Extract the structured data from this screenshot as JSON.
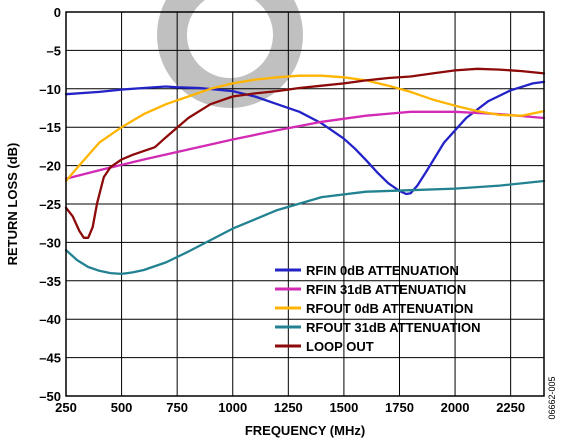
{
  "chart_data": {
    "type": "line",
    "title": "",
    "xlabel": "FREQUENCY (MHz)",
    "ylabel": "RETURN LOSS (dB)",
    "xlim": [
      250,
      2400
    ],
    "ylim": [
      -50,
      0
    ],
    "x_ticks": [
      250,
      500,
      750,
      1000,
      1250,
      1500,
      1750,
      2000,
      2250
    ],
    "y_ticks": [
      0,
      -5,
      -10,
      -15,
      -20,
      -25,
      -30,
      -35,
      -40,
      -45,
      -50
    ],
    "y_tick_labels": [
      "0",
      "–5",
      "–10",
      "–15",
      "–20",
      "–25",
      "–30",
      "–35",
      "–40",
      "–45",
      "–50"
    ],
    "grid": true,
    "legend_position": "bottom-right",
    "figure_id": "06662-005",
    "series": [
      {
        "name": "RFIN 0dB ATTENUATION",
        "color": "#2323c8",
        "x": [
          250,
          400,
          500,
          600,
          700,
          750,
          850,
          1000,
          1100,
          1200,
          1300,
          1400,
          1500,
          1550,
          1600,
          1650,
          1700,
          1750,
          1780,
          1800,
          1830,
          1870,
          1950,
          2050,
          2150,
          2250,
          2350,
          2400
        ],
        "y": [
          -10.7,
          -10.4,
          -10.1,
          -9.9,
          -9.7,
          -9.8,
          -9.9,
          -10.3,
          -11.0,
          -12.0,
          -13.0,
          -14.5,
          -16.5,
          -17.8,
          -19.3,
          -20.9,
          -22.3,
          -23.3,
          -23.7,
          -23.6,
          -22.6,
          -20.8,
          -17.0,
          -13.8,
          -11.6,
          -10.2,
          -9.3,
          -9.1
        ]
      },
      {
        "name": "RFIN 31dB ATTENUATION",
        "color": "#d22ab4",
        "x": [
          250,
          400,
          600,
          800,
          1000,
          1200,
          1400,
          1600,
          1800,
          2000,
          2200,
          2400
        ],
        "y": [
          -21.7,
          -20.6,
          -19.2,
          -17.9,
          -16.6,
          -15.4,
          -14.3,
          -13.5,
          -13.0,
          -13.0,
          -13.3,
          -13.8
        ]
      },
      {
        "name": "RFOUT 0dB ATTENUATION",
        "color": "#ffb400",
        "x": [
          250,
          300,
          400,
          500,
          600,
          700,
          800,
          900,
          1000,
          1100,
          1200,
          1300,
          1400,
          1500,
          1600,
          1700,
          1800,
          1900,
          2000,
          2100,
          2200,
          2300,
          2400
        ],
        "y": [
          -22.0,
          -20.3,
          -17.0,
          -15.0,
          -13.3,
          -12.0,
          -11.0,
          -10.0,
          -9.3,
          -8.8,
          -8.5,
          -8.3,
          -8.3,
          -8.5,
          -8.9,
          -9.6,
          -10.4,
          -11.4,
          -12.2,
          -12.9,
          -13.4,
          -13.5,
          -12.9
        ]
      },
      {
        "name": "RFOUT 31dB ATTENUATION",
        "color": "#238291",
        "x": [
          250,
          300,
          350,
          400,
          450,
          500,
          550,
          600,
          700,
          800,
          900,
          1000,
          1200,
          1400,
          1600,
          1800,
          2000,
          2200,
          2400
        ],
        "y": [
          -31.0,
          -32.3,
          -33.2,
          -33.7,
          -34.0,
          -34.1,
          -33.9,
          -33.6,
          -32.6,
          -31.2,
          -29.7,
          -28.2,
          -25.8,
          -24.1,
          -23.4,
          -23.2,
          -23.0,
          -22.6,
          -22.0
        ]
      },
      {
        "name": "LOOP OUT",
        "color": "#8c0a0a",
        "x": [
          250,
          280,
          310,
          330,
          350,
          370,
          390,
          420,
          450,
          500,
          550,
          650,
          700,
          800,
          900,
          1000,
          1100,
          1200,
          1300,
          1400,
          1500,
          1600,
          1700,
          1800,
          1900,
          2000,
          2100,
          2200,
          2300,
          2400
        ],
        "y": [
          -25.5,
          -26.6,
          -28.5,
          -29.4,
          -29.4,
          -28.0,
          -24.9,
          -21.5,
          -20.2,
          -19.2,
          -18.6,
          -17.6,
          -16.3,
          -13.8,
          -12.0,
          -11.0,
          -10.6,
          -10.3,
          -9.9,
          -9.6,
          -9.3,
          -8.9,
          -8.6,
          -8.4,
          -8.0,
          -7.6,
          -7.4,
          -7.5,
          -7.7,
          -8.0
        ]
      }
    ]
  }
}
